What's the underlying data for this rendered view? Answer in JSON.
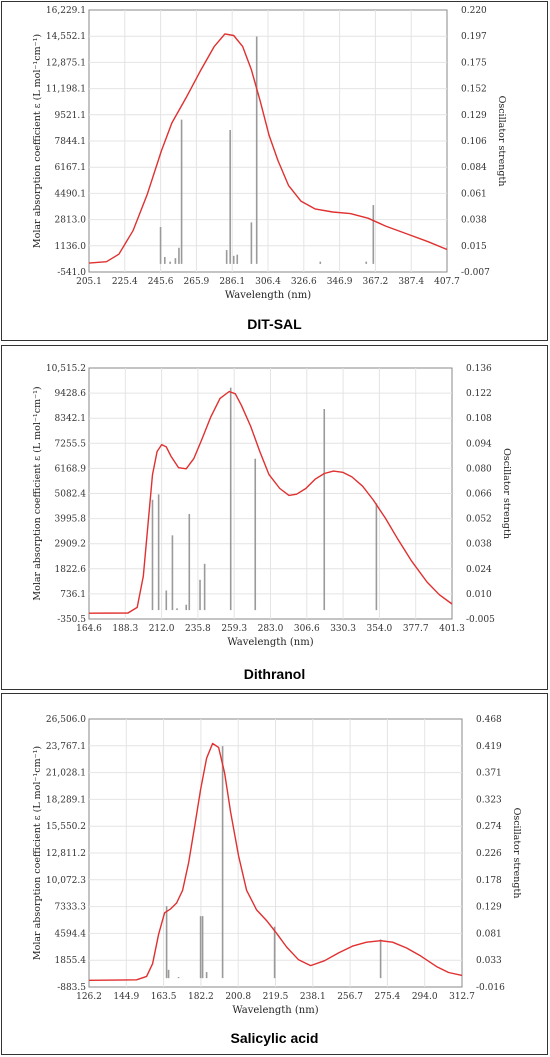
{
  "chart_data": [
    {
      "type": "line",
      "caption": "DIT-SAL",
      "xlabel": "Wavelength (nm)",
      "ylabel": "Molar absorption coefficient  ε (L mol⁻¹cm⁻¹)",
      "y2label": "Oscillator strength",
      "xlim": [
        205.1,
        407.7
      ],
      "ylim": [
        -541.0,
        16229.1
      ],
      "y2lim": [
        -0.007,
        0.22
      ],
      "x_ticks": [
        "205.1",
        "225.4",
        "245.6",
        "265.9",
        "286.1",
        "306.4",
        "326.6",
        "346.9",
        "367.2",
        "387.4",
        "407.7"
      ],
      "y_ticks": [
        "-541.0",
        "1136.0",
        "2813.0",
        "4490.1",
        "6167.1",
        "7844.1",
        "9521.1",
        "11,198.1",
        "12,875.1",
        "14,552.1",
        "16,229.1"
      ],
      "y2_ticks": [
        "-0.007",
        "0.015",
        "0.038",
        "0.061",
        "0.084",
        "0.106",
        "0.129",
        "0.152",
        "0.175",
        "0.197",
        "0.220"
      ],
      "curve": [
        [
          205.1,
          30
        ],
        [
          215,
          120
        ],
        [
          222,
          600
        ],
        [
          230,
          2100
        ],
        [
          238,
          4400
        ],
        [
          246,
          7200
        ],
        [
          252,
          9000
        ],
        [
          260,
          10600
        ],
        [
          268,
          12300
        ],
        [
          276,
          13900
        ],
        [
          282,
          14700
        ],
        [
          287,
          14600
        ],
        [
          292,
          13900
        ],
        [
          297,
          12400
        ],
        [
          302,
          10400
        ],
        [
          307,
          8200
        ],
        [
          312,
          6600
        ],
        [
          318,
          5000
        ],
        [
          325,
          4000
        ],
        [
          333,
          3500
        ],
        [
          343,
          3300
        ],
        [
          353,
          3200
        ],
        [
          363,
          2900
        ],
        [
          373,
          2400
        ],
        [
          385,
          1900
        ],
        [
          397,
          1400
        ],
        [
          407.7,
          900
        ]
      ],
      "sticks": [
        [
          245.6,
          0.032
        ],
        [
          248,
          0.006
        ],
        [
          251,
          0.002
        ],
        [
          254,
          0.005
        ],
        [
          256,
          0.014
        ],
        [
          257.5,
          0.125
        ],
        [
          283,
          0.012
        ],
        [
          285,
          0.116
        ],
        [
          287,
          0.007
        ],
        [
          289,
          0.008
        ],
        [
          297,
          0.036
        ],
        [
          300,
          0.197
        ],
        [
          336,
          0.002
        ],
        [
          362,
          0.002
        ],
        [
          366,
          0.051
        ]
      ]
    },
    {
      "type": "line",
      "caption": "Dithranol",
      "xlabel": "Wavelength (nm)",
      "ylabel": "Molar absorption coefficient  ε (L mol⁻¹cm⁻¹)",
      "y2label": "Oscillator strength",
      "xlim": [
        164.6,
        401.3
      ],
      "ylim": [
        -350.5,
        10515.2
      ],
      "y2lim": [
        -0.005,
        0.136
      ],
      "x_ticks": [
        "164.6",
        "188.3",
        "212.0",
        "235.8",
        "259.3",
        "283.0",
        "306.6",
        "330.3",
        "354.0",
        "377.7",
        "401.3"
      ],
      "y_ticks": [
        "-350.5",
        "736.1",
        "1822.6",
        "2909.2",
        "3995.8",
        "5082.4",
        "6168.9",
        "7255.5",
        "8342.1",
        "9428.6",
        "10,515.2"
      ],
      "y2_ticks": [
        "-0.005",
        "0.010",
        "0.024",
        "0.038",
        "0.052",
        "0.066",
        "0.080",
        "0.094",
        "0.108",
        "0.122",
        "0.136"
      ],
      "curve": [
        [
          164.6,
          -100
        ],
        [
          190,
          -90
        ],
        [
          196,
          150
        ],
        [
          200,
          1500
        ],
        [
          203,
          3700
        ],
        [
          206,
          5900
        ],
        [
          209,
          6900
        ],
        [
          212,
          7200
        ],
        [
          215,
          7100
        ],
        [
          218,
          6700
        ],
        [
          223,
          6200
        ],
        [
          228,
          6150
        ],
        [
          233,
          6600
        ],
        [
          238,
          7400
        ],
        [
          244,
          8400
        ],
        [
          250,
          9200
        ],
        [
          256,
          9500
        ],
        [
          260,
          9400
        ],
        [
          264,
          8900
        ],
        [
          270,
          8000
        ],
        [
          276,
          6900
        ],
        [
          282,
          5900
        ],
        [
          289,
          5300
        ],
        [
          295,
          5000
        ],
        [
          300,
          5050
        ],
        [
          306,
          5300
        ],
        [
          312,
          5700
        ],
        [
          318,
          5950
        ],
        [
          324,
          6050
        ],
        [
          330,
          6000
        ],
        [
          336,
          5800
        ],
        [
          343,
          5400
        ],
        [
          350,
          4800
        ],
        [
          358,
          4000
        ],
        [
          366,
          3100
        ],
        [
          375,
          2150
        ],
        [
          385,
          1250
        ],
        [
          393,
          700
        ],
        [
          401.3,
          300
        ]
      ],
      "sticks": [
        [
          206,
          0.062
        ],
        [
          210,
          0.065
        ],
        [
          215,
          0.011
        ],
        [
          219,
          0.042
        ],
        [
          222,
          0.001
        ],
        [
          228,
          0.003
        ],
        [
          230,
          0.054
        ],
        [
          237,
          0.017
        ],
        [
          240,
          0.026
        ],
        [
          257,
          0.125
        ],
        [
          273,
          0.085
        ],
        [
          318,
          0.113
        ],
        [
          352,
          0.06
        ]
      ]
    },
    {
      "type": "line",
      "caption": "Salicylic acid",
      "xlabel": "Wavelength (nm)",
      "ylabel": "Molar absorption coefficient  ε (L mol⁻¹cm⁻¹)",
      "y2label": "Oscillator strength",
      "xlim": [
        126.2,
        312.7
      ],
      "ylim": [
        -883.5,
        26506.0
      ],
      "y2lim": [
        -0.016,
        0.468
      ],
      "x_ticks": [
        "126.2",
        "144.9",
        "163.5",
        "182.2",
        "200.8",
        "219.5",
        "238.1",
        "256.7",
        "275.4",
        "294.0",
        "312.7"
      ],
      "y_ticks": [
        "-883.5",
        "1855.4",
        "4594.4",
        "7333.3",
        "10,072.3",
        "12,811.2",
        "15,550.2",
        "18,289.1",
        "21,028.1",
        "23,767.1",
        "26,506.0"
      ],
      "y2_ticks": [
        "-0.016",
        "0.033",
        "0.081",
        "0.129",
        "0.178",
        "0.226",
        "0.274",
        "0.323",
        "0.371",
        "0.419",
        "0.468"
      ],
      "curve": [
        [
          126.2,
          -200
        ],
        [
          150,
          -150
        ],
        [
          155,
          200
        ],
        [
          158,
          1500
        ],
        [
          161,
          4500
        ],
        [
          164,
          6700
        ],
        [
          167,
          7100
        ],
        [
          170,
          7700
        ],
        [
          173,
          9000
        ],
        [
          176,
          11800
        ],
        [
          179,
          15500
        ],
        [
          182,
          19300
        ],
        [
          185,
          22500
        ],
        [
          188,
          24000
        ],
        [
          191,
          23600
        ],
        [
          194,
          21000
        ],
        [
          197,
          17000
        ],
        [
          201,
          12500
        ],
        [
          205,
          9000
        ],
        [
          210,
          7000
        ],
        [
          215,
          5900
        ],
        [
          220,
          4600
        ],
        [
          225,
          3200
        ],
        [
          231,
          1900
        ],
        [
          237,
          1300
        ],
        [
          244,
          1800
        ],
        [
          251,
          2600
        ],
        [
          258,
          3300
        ],
        [
          265,
          3700
        ],
        [
          272,
          3850
        ],
        [
          278,
          3700
        ],
        [
          285,
          3100
        ],
        [
          292,
          2300
        ],
        [
          300,
          1200
        ],
        [
          306,
          600
        ],
        [
          312.7,
          300
        ]
      ],
      "sticks": [
        [
          165,
          0.13
        ],
        [
          166,
          0.015
        ],
        [
          171,
          0.002
        ],
        [
          182,
          0.112
        ],
        [
          183,
          0.112
        ],
        [
          185,
          0.011
        ],
        [
          193,
          0.419
        ],
        [
          219,
          0.093
        ],
        [
          272,
          0.07
        ]
      ]
    }
  ]
}
